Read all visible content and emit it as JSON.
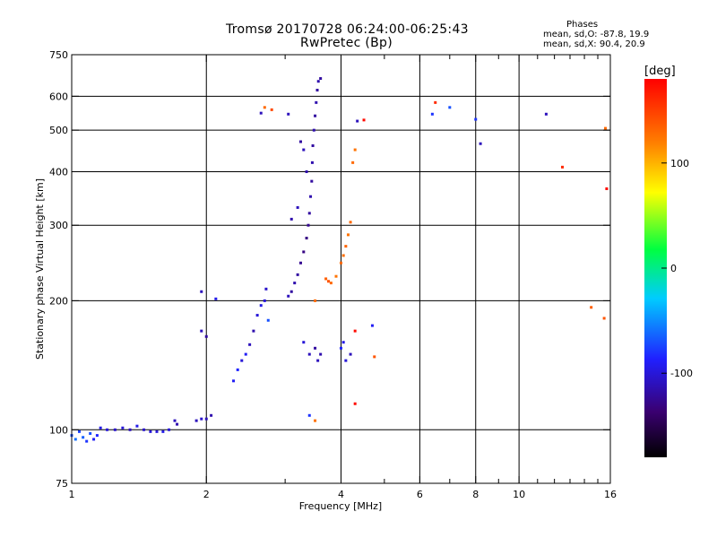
{
  "chart_data": {
    "type": "scatter",
    "title": "Tromsø 20170728 06:24:00-06:25:43",
    "subtitle": "RwPretec (Bp)",
    "stats": {
      "heading": "Phases",
      "line_o": "mean, sd,O: -87.8, 19.9",
      "line_x": "mean, sd,X:  90.4, 20.9"
    },
    "xlabel": "Frequency [MHz]",
    "ylabel": "Stationary phase Virtual Height [km]",
    "x_scale": "log",
    "y_scale": "log",
    "xlim": [
      1,
      16
    ],
    "ylim": [
      75,
      750
    ],
    "x_ticks": [
      1,
      2,
      4,
      6,
      8,
      10,
      16
    ],
    "x_minor_ticks": [
      3,
      5,
      7,
      9,
      11,
      12,
      13,
      14,
      15
    ],
    "x_grid": [
      2,
      4,
      6,
      8,
      10
    ],
    "y_ticks": [
      75,
      100,
      200,
      300,
      400,
      500,
      600,
      750
    ],
    "y_grid": [
      100,
      200,
      300,
      400,
      500,
      600
    ],
    "colorbar": {
      "label": "[deg]",
      "range": [
        -180,
        180
      ],
      "ticks": [
        100,
        0,
        -100
      ]
    },
    "points": [
      {
        "f": 1.0,
        "h": 97,
        "p": -70
      },
      {
        "f": 1.02,
        "h": 95,
        "p": -60
      },
      {
        "f": 1.04,
        "h": 99,
        "p": -75
      },
      {
        "f": 1.06,
        "h": 96,
        "p": -65
      },
      {
        "f": 1.08,
        "h": 94,
        "p": -80
      },
      {
        "f": 1.1,
        "h": 98,
        "p": -70
      },
      {
        "f": 1.12,
        "h": 95,
        "p": -90
      },
      {
        "f": 1.14,
        "h": 97,
        "p": -85
      },
      {
        "f": 1.16,
        "h": 101,
        "p": -95
      },
      {
        "f": 1.2,
        "h": 100,
        "p": -100
      },
      {
        "f": 1.25,
        "h": 100,
        "p": -105
      },
      {
        "f": 1.3,
        "h": 101,
        "p": -100
      },
      {
        "f": 1.35,
        "h": 100,
        "p": -110
      },
      {
        "f": 1.4,
        "h": 102,
        "p": -95
      },
      {
        "f": 1.45,
        "h": 100,
        "p": -105
      },
      {
        "f": 1.5,
        "h": 99,
        "p": -100
      },
      {
        "f": 1.55,
        "h": 99,
        "p": -100
      },
      {
        "f": 1.6,
        "h": 99,
        "p": -95
      },
      {
        "f": 1.65,
        "h": 100,
        "p": -100
      },
      {
        "f": 1.7,
        "h": 105,
        "p": -110
      },
      {
        "f": 1.72,
        "h": 103,
        "p": -115
      },
      {
        "f": 1.9,
        "h": 105,
        "p": -110
      },
      {
        "f": 1.95,
        "h": 106,
        "p": -105
      },
      {
        "f": 2.0,
        "h": 106,
        "p": -110
      },
      {
        "f": 2.05,
        "h": 108,
        "p": -115
      },
      {
        "f": 1.95,
        "h": 170,
        "p": -110
      },
      {
        "f": 2.0,
        "h": 165,
        "p": -120
      },
      {
        "f": 1.95,
        "h": 210,
        "p": -110
      },
      {
        "f": 2.1,
        "h": 202,
        "p": -95
      },
      {
        "f": 2.3,
        "h": 130,
        "p": -90
      },
      {
        "f": 2.35,
        "h": 138,
        "p": -85
      },
      {
        "f": 2.4,
        "h": 145,
        "p": -100
      },
      {
        "f": 2.45,
        "h": 150,
        "p": -90
      },
      {
        "f": 2.5,
        "h": 158,
        "p": -110
      },
      {
        "f": 2.55,
        "h": 170,
        "p": -115
      },
      {
        "f": 2.6,
        "h": 185,
        "p": -100
      },
      {
        "f": 2.65,
        "h": 195,
        "p": -95
      },
      {
        "f": 2.7,
        "h": 200,
        "p": -100
      },
      {
        "f": 2.72,
        "h": 213,
        "p": -105
      },
      {
        "f": 2.75,
        "h": 180,
        "p": -70
      },
      {
        "f": 2.65,
        "h": 548,
        "p": -110
      },
      {
        "f": 2.7,
        "h": 565,
        "p": 130
      },
      {
        "f": 2.8,
        "h": 558,
        "p": 145
      },
      {
        "f": 3.05,
        "h": 205,
        "p": -110
      },
      {
        "f": 3.1,
        "h": 210,
        "p": -120
      },
      {
        "f": 3.15,
        "h": 220,
        "p": -115
      },
      {
        "f": 3.2,
        "h": 230,
        "p": -120
      },
      {
        "f": 3.25,
        "h": 245,
        "p": -125
      },
      {
        "f": 3.3,
        "h": 260,
        "p": -130
      },
      {
        "f": 3.35,
        "h": 280,
        "p": -130
      },
      {
        "f": 3.38,
        "h": 300,
        "p": -125
      },
      {
        "f": 3.4,
        "h": 320,
        "p": -120
      },
      {
        "f": 3.42,
        "h": 350,
        "p": -115
      },
      {
        "f": 3.44,
        "h": 380,
        "p": -120
      },
      {
        "f": 3.45,
        "h": 420,
        "p": -115
      },
      {
        "f": 3.46,
        "h": 460,
        "p": -120
      },
      {
        "f": 3.48,
        "h": 500,
        "p": -115
      },
      {
        "f": 3.5,
        "h": 540,
        "p": -120
      },
      {
        "f": 3.52,
        "h": 580,
        "p": -115
      },
      {
        "f": 3.54,
        "h": 620,
        "p": -120
      },
      {
        "f": 3.56,
        "h": 650,
        "p": -115
      },
      {
        "f": 3.6,
        "h": 660,
        "p": -120
      },
      {
        "f": 3.3,
        "h": 450,
        "p": -110
      },
      {
        "f": 3.35,
        "h": 400,
        "p": -115
      },
      {
        "f": 3.25,
        "h": 470,
        "p": -120
      },
      {
        "f": 3.2,
        "h": 330,
        "p": -110
      },
      {
        "f": 3.1,
        "h": 310,
        "p": -115
      },
      {
        "f": 3.05,
        "h": 545,
        "p": -110
      },
      {
        "f": 3.3,
        "h": 160,
        "p": -100
      },
      {
        "f": 3.4,
        "h": 150,
        "p": -110
      },
      {
        "f": 3.5,
        "h": 155,
        "p": -120
      },
      {
        "f": 3.55,
        "h": 145,
        "p": -110
      },
      {
        "f": 3.6,
        "h": 150,
        "p": -115
      },
      {
        "f": 3.7,
        "h": 225,
        "p": 135
      },
      {
        "f": 3.75,
        "h": 222,
        "p": 140
      },
      {
        "f": 3.8,
        "h": 220,
        "p": 130
      },
      {
        "f": 3.9,
        "h": 228,
        "p": 125
      },
      {
        "f": 4.0,
        "h": 245,
        "p": 130
      },
      {
        "f": 4.05,
        "h": 255,
        "p": 128
      },
      {
        "f": 4.1,
        "h": 268,
        "p": 132
      },
      {
        "f": 4.15,
        "h": 285,
        "p": 125
      },
      {
        "f": 4.2,
        "h": 305,
        "p": 130
      },
      {
        "f": 4.25,
        "h": 420,
        "p": 130
      },
      {
        "f": 4.3,
        "h": 450,
        "p": 125
      },
      {
        "f": 3.5,
        "h": 200,
        "p": 130
      },
      {
        "f": 3.5,
        "h": 105,
        "p": 125
      },
      {
        "f": 3.4,
        "h": 108,
        "p": -80
      },
      {
        "f": 4.0,
        "h": 155,
        "p": -85
      },
      {
        "f": 4.05,
        "h": 160,
        "p": -95
      },
      {
        "f": 4.1,
        "h": 145,
        "p": -100
      },
      {
        "f": 4.2,
        "h": 150,
        "p": -110
      },
      {
        "f": 4.3,
        "h": 170,
        "p": 175
      },
      {
        "f": 4.3,
        "h": 115,
        "p": 175
      },
      {
        "f": 4.35,
        "h": 525,
        "p": -110
      },
      {
        "f": 4.5,
        "h": 528,
        "p": 175
      },
      {
        "f": 4.7,
        "h": 175,
        "p": -90
      },
      {
        "f": 4.75,
        "h": 148,
        "p": 140
      },
      {
        "f": 6.4,
        "h": 545,
        "p": -80
      },
      {
        "f": 6.5,
        "h": 580,
        "p": 160
      },
      {
        "f": 7.0,
        "h": 565,
        "p": -70
      },
      {
        "f": 8.0,
        "h": 530,
        "p": -80
      },
      {
        "f": 8.2,
        "h": 465,
        "p": -110
      },
      {
        "f": 11.5,
        "h": 545,
        "p": -110
      },
      {
        "f": 12.5,
        "h": 410,
        "p": 160
      },
      {
        "f": 14.5,
        "h": 193,
        "p": 135
      },
      {
        "f": 15.5,
        "h": 182,
        "p": 140
      },
      {
        "f": 15.6,
        "h": 505,
        "p": 130
      },
      {
        "f": 15.7,
        "h": 365,
        "p": 175
      }
    ]
  }
}
